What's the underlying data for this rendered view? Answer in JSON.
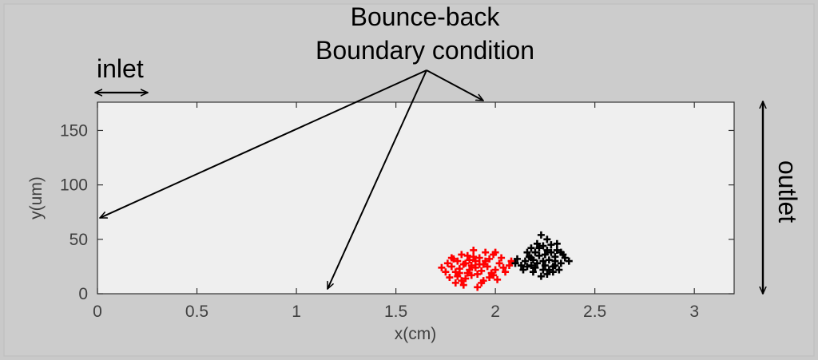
{
  "chart_data": {
    "type": "scatter",
    "title": "",
    "xlabel": "x(cm)",
    "ylabel": "y(um)",
    "xlim": [
      0,
      3.2
    ],
    "ylim": [
      0,
      176
    ],
    "xticks": [
      0,
      0.5,
      1,
      1.5,
      2,
      2.5,
      3
    ],
    "xtick_labels": [
      "0",
      "0.5",
      "1",
      "1.5",
      "2",
      "2.5",
      "3"
    ],
    "yticks": [
      0,
      50,
      100,
      150
    ],
    "ytick_labels": [
      "0",
      "50",
      "100",
      "150"
    ],
    "grid": false,
    "series": [
      {
        "color": "#ff0000",
        "marker": "plus",
        "center": [
          1.9,
          25
        ],
        "spread": [
          0.16,
          22
        ],
        "points": [
          [
            1.9,
            24
          ],
          [
            1.8,
            20
          ],
          [
            1.85,
            28
          ],
          [
            1.95,
            30
          ],
          [
            2.0,
            22
          ],
          [
            1.88,
            17
          ],
          [
            1.92,
            33
          ],
          [
            1.78,
            25
          ],
          [
            1.83,
            12
          ],
          [
            1.97,
            15
          ],
          [
            2.02,
            28
          ],
          [
            1.86,
            35
          ],
          [
            1.75,
            20
          ],
          [
            1.93,
            10
          ],
          [
            1.99,
            36
          ],
          [
            1.81,
            30
          ],
          [
            2.05,
            20
          ],
          [
            1.89,
            40
          ],
          [
            1.84,
            8
          ],
          [
            1.96,
            25
          ],
          [
            2.03,
            33
          ],
          [
            1.77,
            15
          ],
          [
            1.91,
            18
          ],
          [
            1.87,
            22
          ],
          [
            1.94,
            27
          ],
          [
            1.82,
            23
          ],
          [
            1.98,
            19
          ],
          [
            2.07,
            26
          ],
          [
            1.79,
            32
          ],
          [
            1.85,
            14
          ],
          [
            1.95,
            38
          ],
          [
            1.9,
            30
          ],
          [
            1.8,
            10
          ],
          [
            2.01,
            13
          ],
          [
            1.88,
            26
          ],
          [
            1.73,
            24
          ],
          [
            2.08,
            30
          ],
          [
            1.86,
            19
          ],
          [
            1.93,
            21
          ],
          [
            1.83,
            36
          ],
          [
            1.97,
            32
          ],
          [
            1.91,
            6
          ],
          [
            1.76,
            28
          ],
          [
            2.04,
            24
          ],
          [
            1.89,
            34
          ],
          [
            1.84,
            27
          ],
          [
            1.99,
            17
          ],
          [
            1.81,
            16
          ],
          [
            1.94,
            12
          ],
          [
            1.87,
            31
          ],
          [
            2.0,
            38
          ],
          [
            1.78,
            33
          ],
          [
            1.92,
            27
          ],
          [
            1.82,
            19
          ]
        ]
      },
      {
        "color": "#000000",
        "marker": "plus",
        "center": [
          2.24,
          30
        ],
        "spread": [
          0.14,
          26
        ],
        "points": [
          [
            2.24,
            30
          ],
          [
            2.18,
            26
          ],
          [
            2.3,
            34
          ],
          [
            2.2,
            38
          ],
          [
            2.27,
            22
          ],
          [
            2.15,
            30
          ],
          [
            2.33,
            28
          ],
          [
            2.22,
            42
          ],
          [
            2.28,
            45
          ],
          [
            2.19,
            20
          ],
          [
            2.25,
            36
          ],
          [
            2.31,
            40
          ],
          [
            2.13,
            26
          ],
          [
            2.23,
            16
          ],
          [
            2.29,
            25
          ],
          [
            2.17,
            34
          ],
          [
            2.26,
            50
          ],
          [
            2.35,
            33
          ],
          [
            2.21,
            28
          ],
          [
            2.27,
            31
          ],
          [
            2.16,
            38
          ],
          [
            2.32,
            22
          ],
          [
            2.24,
            44
          ],
          [
            2.2,
            24
          ],
          [
            2.3,
            30
          ],
          [
            2.11,
            32
          ],
          [
            2.26,
            18
          ],
          [
            2.34,
            36
          ],
          [
            2.18,
            42
          ],
          [
            2.28,
            38
          ],
          [
            2.22,
            35
          ],
          [
            2.14,
            22
          ],
          [
            2.25,
            26
          ],
          [
            2.31,
            46
          ],
          [
            2.19,
            31
          ],
          [
            2.37,
            30
          ],
          [
            2.23,
            54
          ],
          [
            2.1,
            28
          ],
          [
            2.29,
            20
          ],
          [
            2.21,
            46
          ],
          [
            2.26,
            40
          ],
          [
            2.16,
            25
          ],
          [
            2.33,
            38
          ],
          [
            2.24,
            22
          ],
          [
            2.18,
            33
          ],
          [
            2.3,
            26
          ]
        ]
      }
    ],
    "annotations": [
      {
        "text": "inlet",
        "kind": "horizontal-double-arrow",
        "from": [
          0,
          190
        ],
        "to": [
          0.27,
          190
        ]
      },
      {
        "text": "Bounce-back",
        "kind": "label"
      },
      {
        "text": "Boundary condition",
        "kind": "arrows",
        "targets": [
          [
            0,
            68
          ],
          [
            1.16,
            5
          ],
          [
            1.94,
            178
          ]
        ]
      },
      {
        "text": "outlet",
        "kind": "vertical-double-arrow"
      }
    ]
  }
}
